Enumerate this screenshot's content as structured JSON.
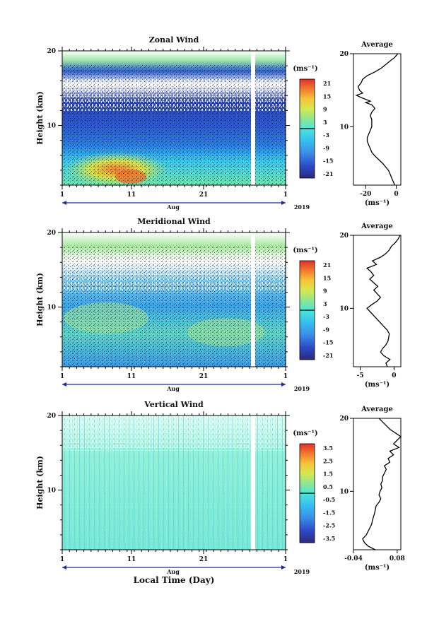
{
  "figure": {
    "x_label": "Local Time (Day)",
    "month_label": "Aug",
    "year_label": "2019"
  },
  "chart_data": [
    {
      "type": "heatmap",
      "title": "Zonal Wind",
      "ylabel": "Height (km)",
      "xlabel": "Aug",
      "x_ticks": [
        "1",
        "11",
        "21",
        "1"
      ],
      "y_ticks": [
        "10",
        "20"
      ],
      "ylim": [
        2,
        20
      ],
      "colorbar": {
        "unit": "(ms⁻¹)",
        "ticks": [
          "21",
          "15",
          "9",
          "3",
          "-3",
          "-9",
          "-15",
          "-21"
        ],
        "range": [
          -24,
          24
        ]
      },
      "average_profile": {
        "title": "Average",
        "xlabel": "(ms⁻¹)",
        "x_ticks": [
          "-20",
          "0"
        ],
        "xlim": [
          -28,
          3
        ],
        "heights": [
          2.0,
          2.5,
          3,
          3.5,
          4,
          5,
          6,
          6.5,
          7,
          7.5,
          8,
          8.5,
          9,
          10,
          11,
          11.5,
          12,
          12.5,
          13,
          13.3,
          13.5,
          14,
          14.3,
          14.6,
          15,
          15.5,
          16,
          16.5,
          17,
          17.5,
          18,
          18.5,
          19,
          19.5,
          20
        ],
        "values": [
          -1,
          -2,
          -3,
          -4,
          -5,
          -9,
          -14,
          -16,
          -17,
          -18,
          -19,
          -19,
          -18,
          -16,
          -16,
          -17,
          -16,
          -14,
          -16,
          -20,
          -17,
          -23,
          -26,
          -22,
          -24,
          -25,
          -23,
          -22,
          -19,
          -14,
          -10,
          -7,
          -4,
          -1,
          1
        ]
      }
    },
    {
      "type": "heatmap",
      "title": "Meridional Wind",
      "ylabel": "Height (km)",
      "xlabel": "Aug",
      "x_ticks": [
        "1",
        "11",
        "21",
        "1"
      ],
      "y_ticks": [
        "10",
        "20"
      ],
      "ylim": [
        2,
        20
      ],
      "colorbar": {
        "unit": "(ms⁻¹)",
        "ticks": [
          "21",
          "15",
          "9",
          "3",
          "-3",
          "-9",
          "-15",
          "-21"
        ],
        "range": [
          -24,
          24
        ]
      },
      "average_profile": {
        "title": "Average",
        "xlabel": "(ms⁻¹)",
        "x_ticks": [
          "-5",
          "0"
        ],
        "xlim": [
          -6,
          1
        ],
        "heights": [
          2,
          2.5,
          3,
          3.5,
          4,
          4.5,
          5,
          5.5,
          6,
          6.5,
          7,
          7.5,
          8,
          8.5,
          9,
          9.5,
          10,
          10.5,
          11,
          11.5,
          12,
          12.5,
          13,
          13.5,
          14,
          14.5,
          15,
          15.5,
          16,
          16.5,
          17,
          17.5,
          18,
          18.5,
          19,
          19.5,
          20
        ],
        "values": [
          -1.0,
          -1.2,
          -0.6,
          -1.5,
          -2.0,
          -1.7,
          -1.2,
          -0.9,
          -0.8,
          -0.7,
          -1.0,
          -1.5,
          -2.0,
          -2.5,
          -3.0,
          -3.5,
          -4.0,
          -3.3,
          -2.5,
          -2.0,
          -2.5,
          -3.0,
          -2.4,
          -3.0,
          -3.6,
          -3.0,
          -3.4,
          -4.0,
          -2.6,
          -3.2,
          -2.0,
          -1.2,
          -0.7,
          -0.4,
          0.2,
          0.6,
          0.9
        ]
      }
    },
    {
      "type": "heatmap",
      "title": "Vertical Wind",
      "ylabel": "Height (km)",
      "xlabel": "Aug",
      "x_ticks": [
        "1",
        "11",
        "21",
        "1"
      ],
      "y_ticks": [
        "10",
        "20"
      ],
      "ylim": [
        2,
        20
      ],
      "colorbar": {
        "unit": "(ms⁻¹)",
        "ticks": [
          "3.5",
          "2.5",
          "1.5",
          "0.5",
          "-0.5",
          "-1.5",
          "-2.5",
          "-3.5"
        ],
        "range": [
          -4,
          4
        ]
      },
      "average_profile": {
        "title": "Average",
        "xlabel": "(ms⁻¹)",
        "x_ticks": [
          "-0.04",
          "0.08"
        ],
        "xlim": [
          -0.04,
          0.09
        ],
        "heights": [
          2,
          2.5,
          3,
          3.5,
          4,
          4.5,
          5,
          5.5,
          6,
          6.5,
          7,
          7.5,
          8,
          8.5,
          9,
          9.5,
          10,
          10.5,
          11,
          11.5,
          12,
          12.5,
          13,
          13.5,
          14,
          14.5,
          15,
          15.5,
          16,
          16.5,
          17,
          17.5,
          18,
          18.5,
          19,
          19.5,
          20
        ],
        "values": [
          0.02,
          0.0,
          -0.01,
          -0.015,
          -0.005,
          0.0,
          0.005,
          0.01,
          0.012,
          0.015,
          0.018,
          0.02,
          0.022,
          0.03,
          0.035,
          0.03,
          0.033,
          0.038,
          0.035,
          0.04,
          0.04,
          0.045,
          0.05,
          0.045,
          0.06,
          0.055,
          0.07,
          0.06,
          0.085,
          0.07,
          0.08,
          0.09,
          0.075,
          0.06,
          0.05,
          0.04,
          0.03
        ]
      }
    }
  ]
}
